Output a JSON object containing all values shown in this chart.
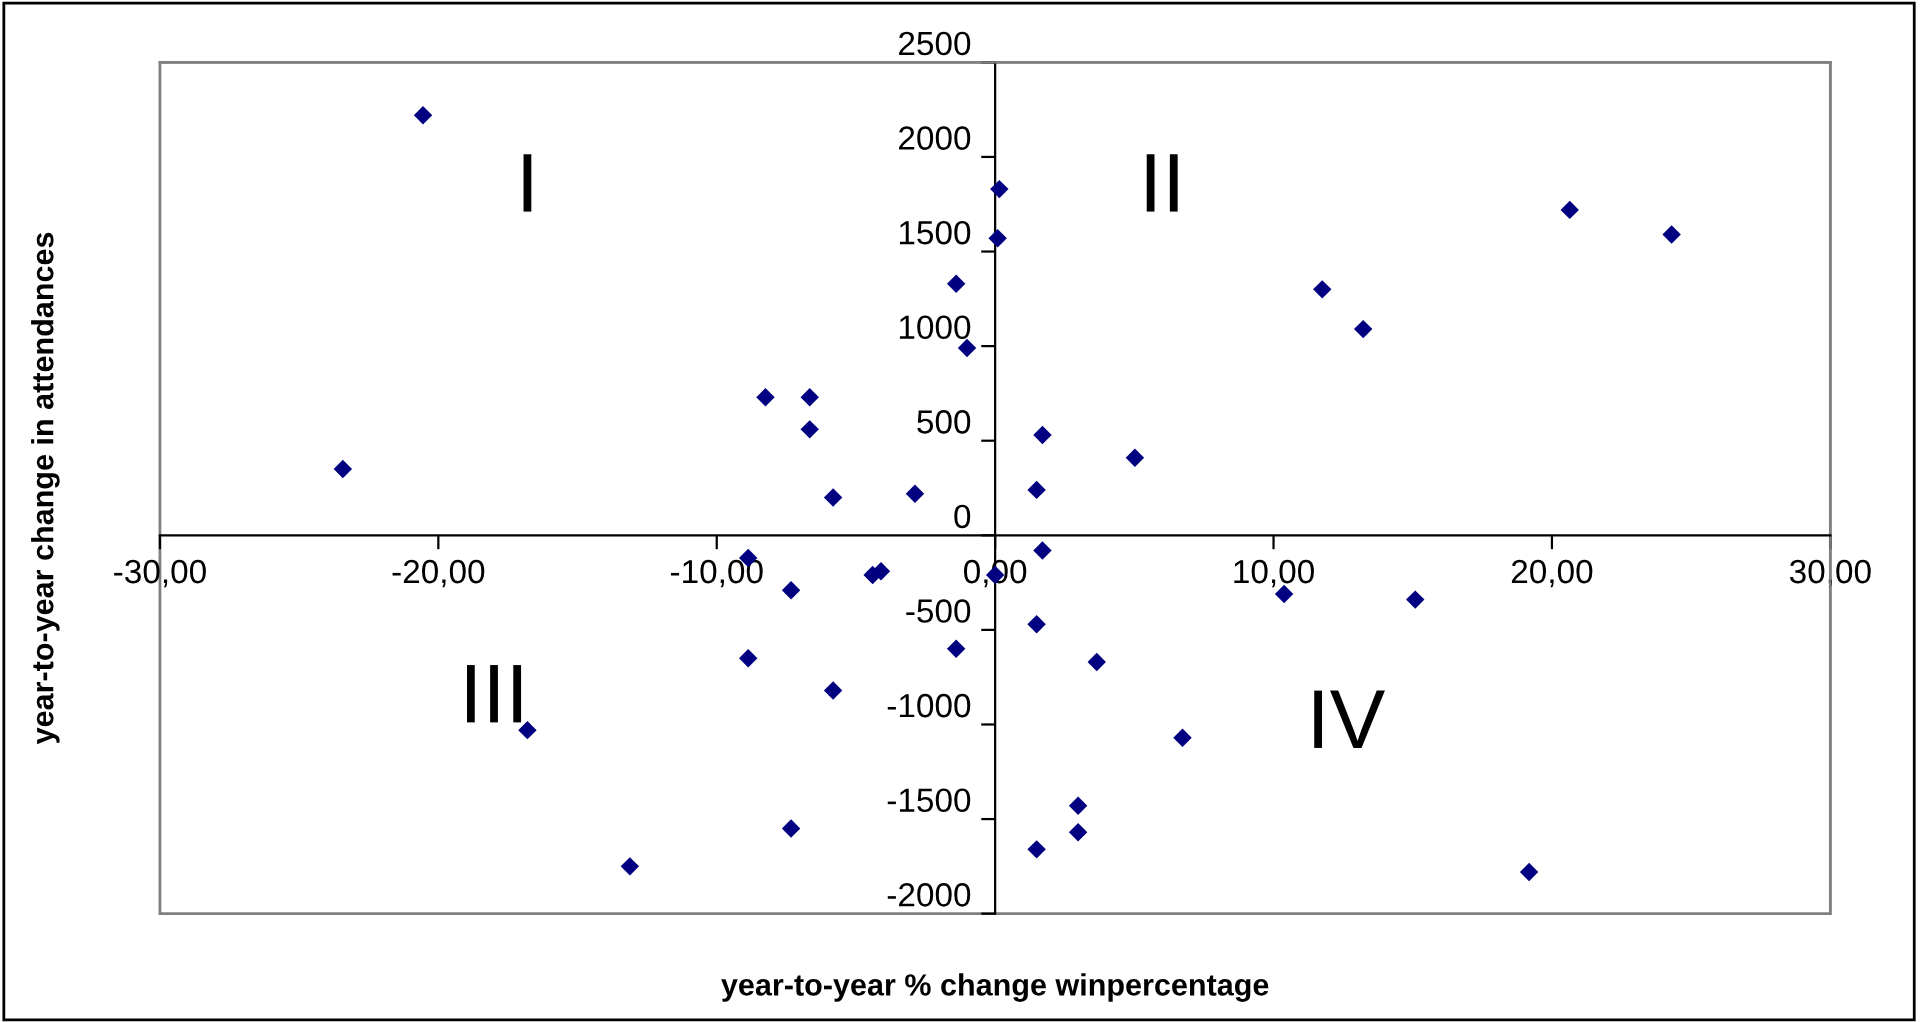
{
  "chart_data": {
    "type": "scatter",
    "xlabel": "year-to-year % change winpercentage",
    "ylabel": "year-to-year change in attendances",
    "annotations": [
      "I",
      "II",
      "III",
      "IV"
    ],
    "marker": "diamond",
    "grid": false,
    "legend": false,
    "xlim": [
      -30,
      30
    ],
    "ylim": [
      -2000,
      2500
    ],
    "xticks": [
      {
        "value": -30,
        "label": "-30,00"
      },
      {
        "value": -20,
        "label": "-20,00"
      },
      {
        "value": -10,
        "label": "-10,00"
      },
      {
        "value": 0,
        "label": "0,00"
      },
      {
        "value": 10,
        "label": "10,00"
      },
      {
        "value": 20,
        "label": "20,00"
      },
      {
        "value": 30,
        "label": "30,00"
      }
    ],
    "yticks": [
      -2000,
      -1500,
      -1000,
      -500,
      0,
      500,
      1000,
      1500,
      2000,
      2500
    ],
    "series": [
      {
        "color": "#000080",
        "x": [
          -20.55,
          -23.43,
          -8.25,
          -6.66,
          -6.66,
          -5.82,
          -2.88,
          -1.4,
          -1.01,
          0.15,
          0.09,
          1.7,
          1.49,
          5.02,
          11.75,
          13.22,
          20.64,
          24.3,
          -8.87,
          -7.33,
          -4.4,
          -4.1,
          0.0,
          -1.4,
          -8.87,
          -5.82,
          -16.8,
          -7.33,
          -13.12,
          1.7,
          10.38,
          15.09,
          1.49,
          3.65,
          6.73,
          2.98,
          2.98,
          1.49,
          19.18
        ],
        "values": [
          2220,
          350,
          730,
          730,
          560,
          200,
          220,
          1330,
          990,
          1830,
          1570,
          530,
          240,
          410,
          1300,
          1090,
          1720,
          1590,
          -120,
          -290,
          -210,
          -190,
          -210,
          -600,
          -650,
          -820,
          -1030,
          -1550,
          -1750,
          -80,
          -310,
          -340,
          -470,
          -670,
          -1070,
          -1430,
          -1570,
          -1660,
          -1780
        ]
      }
    ]
  }
}
